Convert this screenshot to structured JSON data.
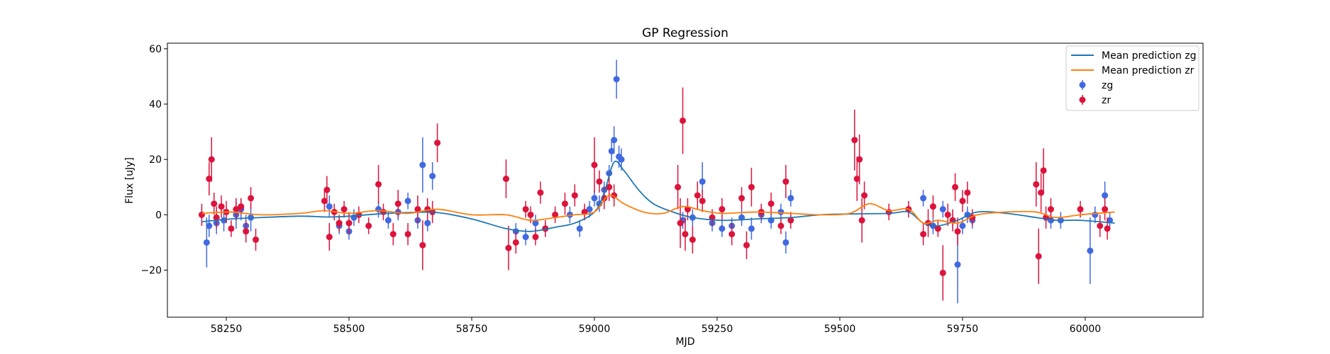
{
  "chart_data": {
    "type": "scatter",
    "title": "GP Regression",
    "xlabel": "MJD",
    "ylabel": "Flux [uJy]",
    "xlim": [
      58130,
      60240
    ],
    "ylim": [
      -37,
      62
    ],
    "xticks": [
      58250,
      58500,
      58750,
      59000,
      59250,
      59500,
      59750,
      60000
    ],
    "yticks": [
      -20,
      0,
      20,
      40,
      60
    ],
    "grid": false,
    "legend_position": "top-right",
    "colors": {
      "zg_line": "#1f77b4",
      "zr_line": "#ff7f0e",
      "zg_points": "#4169e1",
      "zr_points": "#dc143c"
    },
    "legend": [
      {
        "label": "Mean prediction zg",
        "kind": "line",
        "color": "#1f77b4"
      },
      {
        "label": "Mean prediction zr",
        "kind": "line",
        "color": "#ff7f0e"
      },
      {
        "label": "zg",
        "kind": "errorbar",
        "color": "#4169e1"
      },
      {
        "label": "zr",
        "kind": "errorbar",
        "color": "#dc143c"
      }
    ],
    "series": [
      {
        "name": "Mean prediction zg",
        "kind": "line",
        "x": [
          58200,
          58260,
          58320,
          58400,
          58460,
          58500,
          58560,
          58620,
          58680,
          58750,
          58820,
          58870,
          58920,
          58960,
          59000,
          59020,
          59040,
          59060,
          59090,
          59120,
          59160,
          59200,
          59260,
          59330,
          59400,
          59460,
          59520,
          59600,
          59640,
          59670,
          59700,
          59740,
          59780,
          59840,
          59900,
          59940,
          59990,
          60060
        ],
        "y": [
          -2.5,
          -1.5,
          -1.0,
          -0.5,
          -0.8,
          -0.5,
          0.3,
          0.8,
          0.8,
          -1.5,
          -5.0,
          -6.0,
          -4.5,
          -3.0,
          1.0,
          8.0,
          19.0,
          16.0,
          9.0,
          4.0,
          1.0,
          -1.0,
          -2.0,
          -1.5,
          -1.0,
          0.0,
          0.3,
          0.5,
          1.0,
          -3.0,
          -4.0,
          -2.0,
          1.0,
          0.5,
          -1.0,
          -2.0,
          -2.0,
          -3.0
        ]
      },
      {
        "name": "Mean prediction zr",
        "kind": "line",
        "x": [
          58200,
          58260,
          58320,
          58400,
          58450,
          58500,
          58560,
          58620,
          58680,
          58750,
          58820,
          58870,
          58920,
          58960,
          59000,
          59030,
          59060,
          59100,
          59140,
          59180,
          59220,
          59260,
          59330,
          59400,
          59460,
          59520,
          59560,
          59600,
          59640,
          59670,
          59700,
          59740,
          59780,
          59840,
          59900,
          59940,
          59990,
          60060
        ],
        "y": [
          0.5,
          1.0,
          0.0,
          0.5,
          1.5,
          0.5,
          1.5,
          0.5,
          2.0,
          0.0,
          0.0,
          -2.0,
          -1.0,
          0.0,
          1.0,
          7.0,
          4.0,
          1.0,
          0.5,
          3.0,
          1.5,
          0.5,
          1.0,
          0.5,
          0.0,
          0.5,
          4.0,
          1.5,
          2.0,
          -3.0,
          -2.0,
          -3.0,
          0.0,
          1.0,
          1.0,
          -1.0,
          0.0,
          1.0
        ]
      },
      {
        "name": "zg",
        "kind": "errorbar",
        "points": [
          [
            58210,
            -10,
            9
          ],
          [
            58215,
            -4,
            4
          ],
          [
            58230,
            -3,
            4
          ],
          [
            58245,
            -2,
            4
          ],
          [
            58270,
            0,
            5
          ],
          [
            58280,
            2,
            4
          ],
          [
            58290,
            -4,
            4
          ],
          [
            58300,
            -1,
            5
          ],
          [
            58460,
            3,
            4
          ],
          [
            58480,
            -4,
            3
          ],
          [
            58500,
            -6,
            3
          ],
          [
            58510,
            -1,
            3
          ],
          [
            58560,
            2,
            3
          ],
          [
            58580,
            -2,
            3
          ],
          [
            58600,
            1,
            3
          ],
          [
            58620,
            5,
            3
          ],
          [
            58640,
            -2,
            3
          ],
          [
            58650,
            18,
            10
          ],
          [
            58660,
            -3,
            3
          ],
          [
            58670,
            14,
            5
          ],
          [
            58840,
            -6,
            3
          ],
          [
            58860,
            -8,
            3
          ],
          [
            58880,
            -3,
            3
          ],
          [
            58900,
            -5,
            3
          ],
          [
            58950,
            0,
            3
          ],
          [
            58970,
            -5,
            3
          ],
          [
            58990,
            2,
            3
          ],
          [
            59000,
            6,
            3
          ],
          [
            59010,
            4,
            3
          ],
          [
            59020,
            9,
            3
          ],
          [
            59030,
            15,
            3
          ],
          [
            59035,
            23,
            4
          ],
          [
            59040,
            27,
            5
          ],
          [
            59045,
            49,
            7
          ],
          [
            59050,
            21,
            4
          ],
          [
            59055,
            20,
            4
          ],
          [
            59180,
            -2,
            3
          ],
          [
            59200,
            -1,
            3
          ],
          [
            59220,
            12,
            7
          ],
          [
            59240,
            -3,
            3
          ],
          [
            59260,
            -5,
            3
          ],
          [
            59280,
            -4,
            3
          ],
          [
            59300,
            -1,
            3
          ],
          [
            59320,
            -5,
            4
          ],
          [
            59340,
            0,
            3
          ],
          [
            59360,
            -2,
            3
          ],
          [
            59380,
            1,
            3
          ],
          [
            59390,
            -10,
            4
          ],
          [
            59400,
            6,
            3
          ],
          [
            59670,
            6,
            3
          ],
          [
            59690,
            -4,
            3
          ],
          [
            59710,
            2,
            3
          ],
          [
            59730,
            -2,
            3
          ],
          [
            59740,
            -18,
            14
          ],
          [
            59750,
            -4,
            3
          ],
          [
            59760,
            0,
            3
          ],
          [
            59770,
            -2,
            3
          ],
          [
            59930,
            -2,
            3
          ],
          [
            59950,
            -2,
            3
          ],
          [
            60010,
            -13,
            12
          ],
          [
            60020,
            0,
            3
          ],
          [
            60040,
            7,
            5
          ],
          [
            60050,
            -2,
            3
          ]
        ]
      },
      {
        "name": "zr",
        "kind": "errorbar",
        "points": [
          [
            58200,
            0,
            4
          ],
          [
            58215,
            13,
            6
          ],
          [
            58220,
            20,
            8
          ],
          [
            58225,
            4,
            4
          ],
          [
            58230,
            -1,
            4
          ],
          [
            58240,
            3,
            4
          ],
          [
            58250,
            1,
            4
          ],
          [
            58260,
            -5,
            3
          ],
          [
            58270,
            2,
            4
          ],
          [
            58280,
            3,
            3
          ],
          [
            58290,
            -6,
            4
          ],
          [
            58300,
            6,
            4
          ],
          [
            58310,
            -9,
            4
          ],
          [
            58450,
            5,
            4
          ],
          [
            58455,
            9,
            5
          ],
          [
            58460,
            -8,
            5
          ],
          [
            58470,
            1,
            3
          ],
          [
            58480,
            -3,
            3
          ],
          [
            58490,
            2,
            3
          ],
          [
            58500,
            -3,
            4
          ],
          [
            58520,
            0,
            3
          ],
          [
            58540,
            -4,
            3
          ],
          [
            58560,
            11,
            7
          ],
          [
            58570,
            1,
            3
          ],
          [
            58590,
            -7,
            4
          ],
          [
            58600,
            4,
            5
          ],
          [
            58620,
            -7,
            4
          ],
          [
            58640,
            2,
            5
          ],
          [
            58650,
            -11,
            9
          ],
          [
            58660,
            2,
            4
          ],
          [
            58670,
            1,
            4
          ],
          [
            58680,
            26,
            7
          ],
          [
            58820,
            13,
            7
          ],
          [
            58825,
            -12,
            8
          ],
          [
            58840,
            -10,
            4
          ],
          [
            58860,
            2,
            3
          ],
          [
            58870,
            0,
            3
          ],
          [
            58880,
            -8,
            3
          ],
          [
            58890,
            8,
            4
          ],
          [
            58900,
            -5,
            3
          ],
          [
            58920,
            0,
            3
          ],
          [
            58940,
            4,
            4
          ],
          [
            58960,
            7,
            4
          ],
          [
            58980,
            1,
            3
          ],
          [
            59000,
            18,
            10
          ],
          [
            59010,
            12,
            4
          ],
          [
            59020,
            6,
            4
          ],
          [
            59030,
            10,
            5
          ],
          [
            59040,
            7,
            4
          ],
          [
            59170,
            10,
            8
          ],
          [
            59175,
            -3,
            9
          ],
          [
            59180,
            34,
            12
          ],
          [
            59185,
            -7,
            6
          ],
          [
            59190,
            2,
            4
          ],
          [
            59200,
            -9,
            5
          ],
          [
            59210,
            7,
            5
          ],
          [
            59220,
            5,
            4
          ],
          [
            59240,
            -1,
            3
          ],
          [
            59260,
            2,
            4
          ],
          [
            59280,
            -7,
            4
          ],
          [
            59300,
            6,
            4
          ],
          [
            59310,
            -11,
            5
          ],
          [
            59320,
            10,
            7
          ],
          [
            59340,
            1,
            3
          ],
          [
            59360,
            4,
            4
          ],
          [
            59380,
            -4,
            3
          ],
          [
            59390,
            12,
            6
          ],
          [
            59400,
            -2,
            3
          ],
          [
            59530,
            27,
            11
          ],
          [
            59535,
            13,
            8
          ],
          [
            59540,
            20,
            9
          ],
          [
            59545,
            -2,
            8
          ],
          [
            59550,
            7,
            5
          ],
          [
            59600,
            1,
            3
          ],
          [
            59640,
            2,
            3
          ],
          [
            59670,
            -7,
            4
          ],
          [
            59680,
            -3,
            5
          ],
          [
            59690,
            3,
            4
          ],
          [
            59700,
            -5,
            3
          ],
          [
            59710,
            -21,
            10
          ],
          [
            59720,
            0,
            4
          ],
          [
            59730,
            -2,
            4
          ],
          [
            59735,
            10,
            5
          ],
          [
            59740,
            -6,
            5
          ],
          [
            59750,
            5,
            4
          ],
          [
            59760,
            8,
            4
          ],
          [
            59770,
            -1,
            3
          ],
          [
            59900,
            11,
            8
          ],
          [
            59905,
            -15,
            10
          ],
          [
            59910,
            8,
            7
          ],
          [
            59915,
            16,
            8
          ],
          [
            59920,
            -1,
            4
          ],
          [
            59930,
            2,
            4
          ],
          [
            59990,
            2,
            3
          ],
          [
            60030,
            -4,
            4
          ],
          [
            60040,
            2,
            4
          ],
          [
            60045,
            -5,
            4
          ]
        ]
      }
    ]
  }
}
